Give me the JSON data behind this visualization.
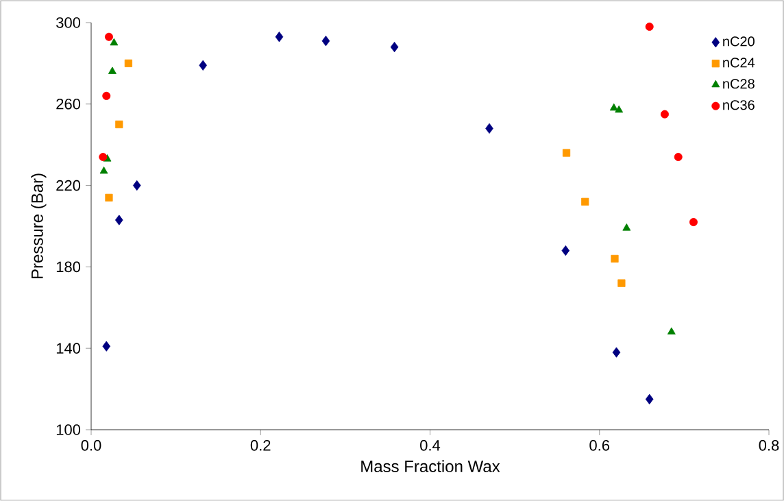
{
  "chart_data": {
    "type": "scatter",
    "xlabel": "Mass Fraction Wax",
    "ylabel": "Pressure (Bar)",
    "xlim": [
      0,
      0.8
    ],
    "xticks": [
      {
        "value": 0,
        "label": "0.0"
      },
      {
        "value": 0.2,
        "label": "0.2"
      },
      {
        "value": 0.4,
        "label": "0.4"
      },
      {
        "value": 0.6,
        "label": "0.6"
      },
      {
        "value": 0.8,
        "label": "0.8"
      }
    ],
    "ylim": [
      100,
      300
    ],
    "yticks": [
      100,
      140,
      180,
      220,
      260,
      300
    ],
    "grid": false,
    "legend": "top right",
    "series": [
      {
        "name": "nC20",
        "color": "#000080",
        "marker": "diamond",
        "x": [
          0.018,
          0.033,
          0.054,
          0.132,
          0.222,
          0.277,
          0.358,
          0.47,
          0.56,
          0.62,
          0.659
        ],
        "values": [
          141,
          203,
          220,
          279,
          293,
          291,
          288,
          248,
          188,
          138,
          115
        ]
      },
      {
        "name": "nC24",
        "color": "#ff9900",
        "marker": "square",
        "x": [
          0.044,
          0.033,
          0.021,
          0.561,
          0.583,
          0.618,
          0.626
        ],
        "values": [
          280,
          250,
          214,
          236,
          212,
          184,
          172
        ]
      },
      {
        "name": "nC28",
        "color": "#008000",
        "marker": "triangle",
        "x": [
          0.027,
          0.025,
          0.019,
          0.015,
          0.617,
          0.623,
          0.632,
          0.685
        ],
        "values": [
          290,
          276,
          233,
          227,
          258,
          257,
          199,
          148
        ]
      },
      {
        "name": "nC36",
        "color": "#ff0000",
        "marker": "circle",
        "x": [
          0.021,
          0.018,
          0.014,
          0.659,
          0.677,
          0.693,
          0.711
        ],
        "values": [
          293,
          264,
          234,
          298,
          255,
          234,
          202
        ]
      }
    ]
  }
}
